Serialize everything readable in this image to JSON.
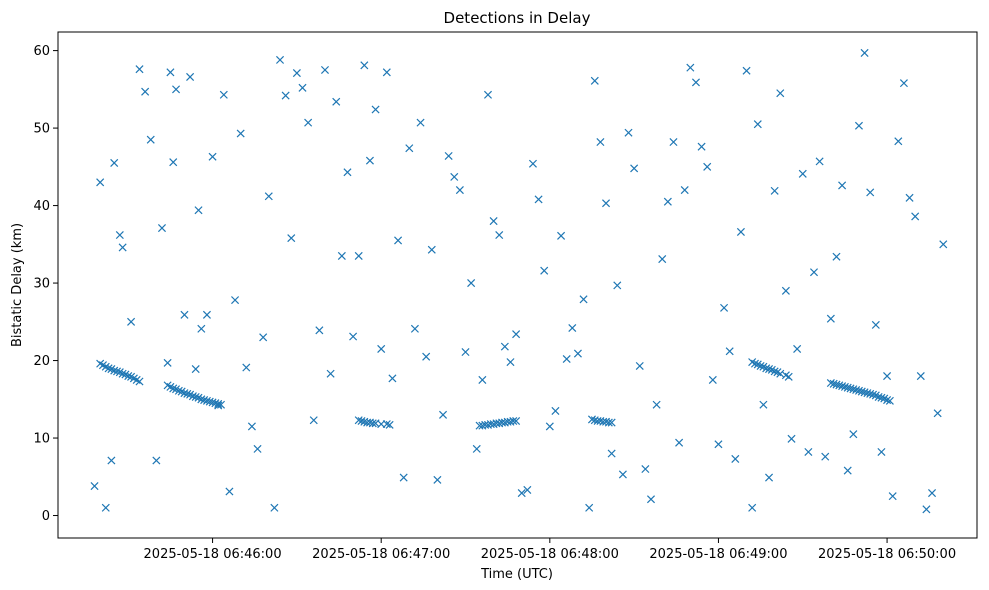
{
  "chart_data": {
    "type": "scatter",
    "title": "Detections in Delay",
    "xlabel": "Time (UTC)",
    "ylabel": "Bistatic Delay (km)",
    "marker": "x",
    "color": "#1f77b4",
    "xlim": [
      "2025-05-18 06:45:05",
      "2025-05-18 06:50:32"
    ],
    "ylim": [
      -2.9,
      62.4
    ],
    "xticks": [
      "2025-05-18 06:46:00",
      "2025-05-18 06:47:00",
      "2025-05-18 06:48:00",
      "2025-05-18 06:49:00",
      "2025-05-18 06:50:00"
    ],
    "yticks": [
      0,
      10,
      20,
      30,
      40,
      50,
      60
    ],
    "grid": false,
    "x": [
      "06:45:20",
      "06:45:21",
      "06:45:22",
      "06:45:23",
      "06:45:24",
      "06:45:25",
      "06:45:26",
      "06:45:27",
      "06:45:28",
      "06:45:29",
      "06:45:30",
      "06:45:31",
      "06:45:32",
      "06:45:33",
      "06:45:34",
      "06:45:44",
      "06:45:45",
      "06:45:46",
      "06:45:47",
      "06:45:48",
      "06:45:49",
      "06:45:50",
      "06:45:51",
      "06:45:52",
      "06:45:53",
      "06:45:54",
      "06:45:55",
      "06:45:56",
      "06:45:57",
      "06:45:58",
      "06:45:59",
      "06:46:00",
      "06:46:01",
      "06:46:02",
      "06:46:03",
      "06:46:52",
      "06:46:53",
      "06:46:54",
      "06:46:55",
      "06:46:56",
      "06:46:57",
      "06:46:58",
      "06:47:00",
      "06:47:02",
      "06:47:03",
      "06:47:35",
      "06:47:36",
      "06:47:37",
      "06:47:38",
      "06:47:39",
      "06:47:40",
      "06:47:41",
      "06:47:42",
      "06:47:43",
      "06:47:44",
      "06:47:45",
      "06:47:46",
      "06:47:47",
      "06:47:48",
      "06:48:15",
      "06:48:16",
      "06:48:17",
      "06:48:18",
      "06:48:19",
      "06:48:20",
      "06:48:21",
      "06:48:22",
      "06:49:12",
      "06:49:13",
      "06:49:14",
      "06:49:15",
      "06:49:16",
      "06:49:17",
      "06:49:18",
      "06:49:19",
      "06:49:20",
      "06:49:21",
      "06:49:22",
      "06:49:24",
      "06:49:25",
      "06:49:40",
      "06:49:41",
      "06:49:42",
      "06:49:43",
      "06:49:44",
      "06:49:45",
      "06:49:46",
      "06:49:47",
      "06:49:48",
      "06:49:49",
      "06:49:50",
      "06:49:51",
      "06:49:52",
      "06:49:53",
      "06:49:54",
      "06:49:55",
      "06:49:56",
      "06:49:57",
      "06:49:58",
      "06:49:59",
      "06:50:00",
      "06:50:01",
      "06:45:18",
      "06:45:20",
      "06:45:22",
      "06:45:24",
      "06:45:25",
      "06:45:27",
      "06:45:28",
      "06:45:31",
      "06:45:34",
      "06:45:36",
      "06:45:38",
      "06:45:40",
      "06:45:42",
      "06:45:44",
      "06:45:45",
      "06:45:46",
      "06:45:47",
      "06:45:50",
      "06:45:52",
      "06:45:54",
      "06:45:55",
      "06:45:56",
      "06:45:58",
      "06:46:00",
      "06:46:02",
      "06:46:04",
      "06:46:06",
      "06:46:08",
      "06:46:10",
      "06:46:12",
      "06:46:14",
      "06:46:16",
      "06:46:18",
      "06:46:20",
      "06:46:22",
      "06:46:24",
      "06:46:26",
      "06:46:28",
      "06:46:30",
      "06:46:32",
      "06:46:34",
      "06:46:36",
      "06:46:38",
      "06:46:40",
      "06:46:42",
      "06:46:44",
      "06:46:46",
      "06:46:48",
      "06:46:50",
      "06:46:52",
      "06:46:54",
      "06:46:56",
      "06:46:58",
      "06:47:00",
      "06:47:02",
      "06:47:04",
      "06:47:06",
      "06:47:08",
      "06:47:10",
      "06:47:12",
      "06:47:14",
      "06:47:16",
      "06:47:18",
      "06:47:20",
      "06:47:22",
      "06:47:24",
      "06:47:26",
      "06:47:28",
      "06:47:30",
      "06:47:32",
      "06:47:34",
      "06:47:36",
      "06:47:38",
      "06:47:40",
      "06:47:42",
      "06:47:44",
      "06:47:46",
      "06:47:48",
      "06:47:50",
      "06:47:52",
      "06:47:54",
      "06:47:56",
      "06:47:58",
      "06:48:00",
      "06:48:02",
      "06:48:04",
      "06:48:06",
      "06:48:08",
      "06:48:10",
      "06:48:12",
      "06:48:14",
      "06:48:16",
      "06:48:18",
      "06:48:20",
      "06:48:22",
      "06:48:24",
      "06:48:26",
      "06:48:28",
      "06:48:30",
      "06:48:32",
      "06:48:34",
      "06:48:36",
      "06:48:38",
      "06:48:40",
      "06:48:42",
      "06:48:44",
      "06:48:46",
      "06:48:48",
      "06:48:50",
      "06:48:52",
      "06:48:54",
      "06:48:56",
      "06:48:58",
      "06:49:00",
      "06:49:02",
      "06:49:04",
      "06:49:06",
      "06:49:08",
      "06:49:10",
      "06:49:12",
      "06:49:14",
      "06:49:16",
      "06:49:18",
      "06:49:20",
      "06:49:22",
      "06:49:24",
      "06:49:26",
      "06:49:28",
      "06:49:30",
      "06:49:32",
      "06:49:34",
      "06:49:36",
      "06:49:38",
      "06:49:40",
      "06:49:42",
      "06:49:44",
      "06:49:46",
      "06:49:48",
      "06:49:50",
      "06:49:52",
      "06:49:54",
      "06:49:56",
      "06:49:58",
      "06:50:00",
      "06:50:02",
      "06:50:04",
      "06:50:06",
      "06:50:08",
      "06:50:10",
      "06:50:12",
      "06:50:14",
      "06:50:16",
      "06:50:18",
      "06:50:20"
    ],
    "y": [
      19.6,
      19.4,
      19.2,
      19.0,
      18.9,
      18.7,
      18.6,
      18.5,
      18.3,
      18.2,
      18.0,
      17.9,
      17.7,
      17.5,
      17.3,
      16.8,
      16.6,
      16.4,
      16.3,
      16.1,
      16.0,
      15.8,
      15.7,
      15.6,
      15.4,
      15.3,
      15.2,
      15.0,
      14.9,
      14.8,
      14.7,
      14.6,
      14.5,
      14.4,
      14.3,
      12.3,
      12.2,
      12.1,
      12.0,
      12.0,
      11.9,
      11.9,
      11.8,
      11.8,
      11.7,
      11.6,
      11.6,
      11.7,
      11.7,
      11.8,
      11.8,
      11.9,
      11.9,
      12.0,
      12.0,
      12.1,
      12.1,
      12.2,
      12.2,
      12.4,
      12.3,
      12.2,
      12.2,
      12.1,
      12.1,
      12.0,
      12.0,
      19.8,
      19.6,
      19.5,
      19.3,
      19.2,
      19.0,
      18.9,
      18.8,
      18.6,
      18.5,
      18.3,
      18.1,
      17.9,
      17.1,
      17.0,
      16.9,
      16.8,
      16.7,
      16.6,
      16.5,
      16.4,
      16.3,
      16.2,
      16.1,
      16.0,
      15.9,
      15.8,
      15.7,
      15.6,
      15.5,
      15.3,
      15.2,
      15.1,
      14.9,
      14.8,
      3.8,
      43.0,
      1.0,
      7.1,
      45.5,
      36.2,
      34.6,
      25.0,
      57.6,
      54.7,
      48.5,
      7.1,
      37.1,
      19.7,
      57.2,
      45.6,
      55.0,
      25.9,
      56.6,
      18.9,
      39.4,
      24.1,
      25.9,
      46.3,
      14.2,
      54.3,
      3.1,
      27.8,
      49.3,
      19.1,
      11.5,
      8.6,
      23.0,
      41.2,
      1.0,
      58.8,
      54.2,
      35.8,
      57.1,
      55.2,
      50.7,
      12.3,
      23.9,
      57.5,
      18.3,
      53.4,
      33.5,
      44.3,
      23.1,
      33.5,
      58.1,
      45.8,
      52.4,
      21.5,
      57.2,
      17.7,
      35.5,
      4.9,
      47.4,
      24.1,
      50.7,
      20.5,
      34.3,
      4.6,
      13.0,
      46.4,
      43.7,
      42.0,
      21.1,
      30.0,
      8.6,
      17.5,
      54.3,
      38.0,
      36.2,
      21.8,
      19.8,
      23.4,
      2.9,
      3.3,
      45.4,
      40.8,
      31.6,
      11.5,
      13.5,
      36.1,
      20.2,
      24.2,
      20.9,
      27.9,
      1.0,
      56.1,
      48.2,
      40.3,
      8.0,
      29.7,
      5.3,
      49.4,
      44.8,
      19.3,
      6.0,
      2.1,
      14.3,
      33.1,
      40.5,
      48.2,
      9.4,
      42.0,
      57.8,
      55.9,
      47.6,
      45.0,
      17.5,
      9.2,
      26.8,
      21.2,
      7.3,
      36.6,
      57.4,
      1.0,
      50.5,
      14.3,
      4.9,
      41.9,
      54.5,
      29.0,
      9.9,
      21.5,
      44.1,
      8.2,
      31.4,
      45.7,
      7.6,
      25.4,
      33.4,
      42.6,
      5.8,
      10.5,
      50.3,
      59.7,
      41.7,
      24.6,
      8.2,
      18.0,
      2.5,
      48.3,
      55.8,
      41.0,
      38.6,
      18.0,
      0.8,
      2.9,
      13.2,
      35.0
    ]
  }
}
